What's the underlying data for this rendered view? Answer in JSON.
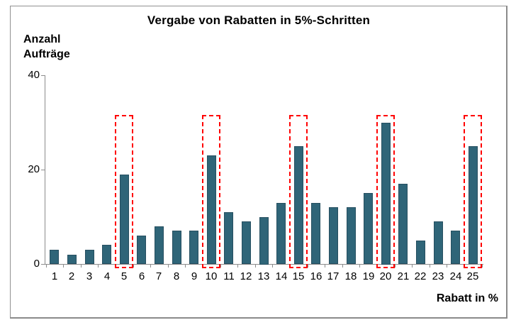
{
  "window": {
    "background": "#ffffff",
    "frame_border_color": "#8f8f8f"
  },
  "chart_data": {
    "type": "bar",
    "title": "Vergabe von Rabatten in 5%-Schritten",
    "ylabel_lines": [
      "Anzahl",
      "Aufträge"
    ],
    "xlabel": "Rabatt in %",
    "categories": [
      "1",
      "2",
      "3",
      "4",
      "5",
      "6",
      "7",
      "8",
      "9",
      "10",
      "11",
      "12",
      "13",
      "14",
      "15",
      "16",
      "17",
      "18",
      "19",
      "20",
      "21",
      "22",
      "23",
      "24",
      "25"
    ],
    "values": [
      3,
      2,
      3,
      4,
      19,
      6,
      8,
      7,
      7,
      23,
      11,
      9,
      10,
      13,
      25,
      13,
      12,
      12,
      15,
      30,
      17,
      5,
      9,
      7,
      25
    ],
    "ylim": [
      0,
      40
    ],
    "yticks": [
      0,
      20,
      40
    ],
    "grid": false,
    "legend": null,
    "bar_color": "#2F6578",
    "bar_border_color": "#264F60",
    "axis_color": "#8C8C8C",
    "highlight_color": "#FF0000",
    "highlighted_categories": [
      "5",
      "10",
      "15",
      "20",
      "25"
    ]
  }
}
